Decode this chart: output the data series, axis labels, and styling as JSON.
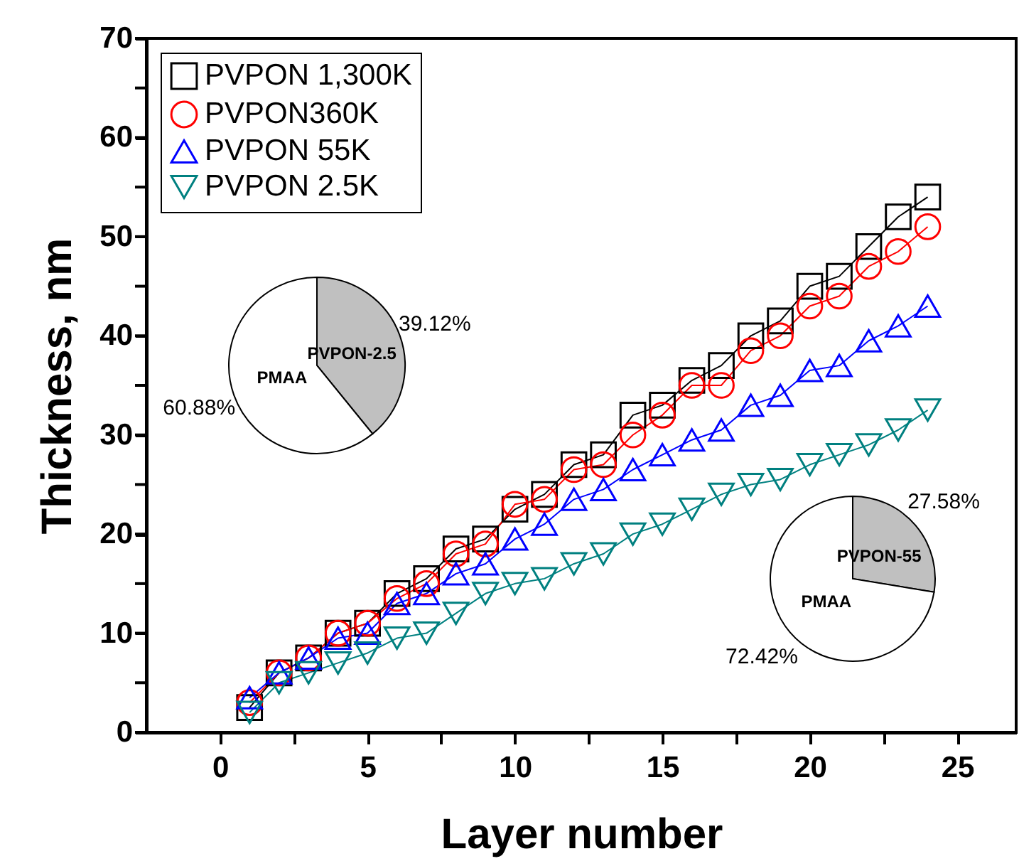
{
  "chart_data": [
    {
      "type": "line",
      "xlabel": "Layer number",
      "ylabel": "Thickness, nm",
      "x": [
        1,
        2,
        3,
        4,
        5,
        6,
        7,
        8,
        9,
        10,
        11,
        12,
        13,
        14,
        15,
        16,
        17,
        18,
        19,
        20,
        21,
        22,
        23,
        24
      ],
      "series": [
        {
          "name": "PVPON 1,300K",
          "color": "#000000",
          "marker": "square",
          "values": [
            2.5,
            6,
            7.5,
            10,
            11,
            14,
            15.5,
            18.5,
            19.5,
            22.5,
            24,
            27,
            28,
            32,
            33,
            35.5,
            37,
            40,
            41.5,
            45,
            46,
            49,
            52,
            54
          ]
        },
        {
          "name": "PVPON360K",
          "color": "#ff0000",
          "marker": "circle",
          "values": [
            3,
            6,
            7.5,
            10,
            11,
            13.5,
            15,
            18,
            19,
            23,
            23.5,
            26.5,
            27,
            30,
            32,
            35,
            35,
            38.5,
            40,
            43,
            44,
            47,
            48.5,
            51
          ]
        },
        {
          "name": "PVPON 55K",
          "color": "#0000ff",
          "marker": "triangle",
          "values": [
            3.5,
            6,
            7.5,
            9.5,
            10,
            13,
            14,
            16,
            17,
            19.5,
            21,
            23.5,
            24.5,
            26.5,
            28,
            29.5,
            30.5,
            33,
            34,
            36.5,
            37,
            39.5,
            41,
            43
          ]
        },
        {
          "name": "PVPON 2.5K",
          "color": "#008080",
          "marker": "triangle-down",
          "values": [
            2,
            5,
            6,
            7,
            8,
            9.5,
            10,
            12,
            14,
            15,
            15.5,
            17,
            18,
            20,
            21,
            22.5,
            24,
            25,
            25.5,
            27,
            28,
            29,
            30.5,
            32.5
          ]
        }
      ],
      "xlim": [
        -2.5,
        27
      ],
      "ylim": [
        0,
        70
      ],
      "xticks": [
        0,
        {
          "value": 2.5,
          "label": null
        },
        5,
        {
          "value": 7.5,
          "label": null
        },
        10,
        {
          "value": 12.5,
          "label": null
        },
        15,
        {
          "value": 17.5,
          "label": null
        },
        20,
        {
          "value": 22.5,
          "label": null
        },
        25
      ],
      "yticks": [
        0,
        {
          "value": 5,
          "label": null
        },
        10,
        {
          "value": 15,
          "label": null
        },
        20,
        {
          "value": 25,
          "label": null
        },
        30,
        {
          "value": 35,
          "label": null
        },
        40,
        {
          "value": 45,
          "label": null
        },
        50,
        {
          "value": 55,
          "label": null
        },
        60,
        {
          "value": 65,
          "label": null
        },
        70
      ],
      "grid": false,
      "legend": "top left",
      "line_style": "solid"
    },
    {
      "type": "pie",
      "categories": [
        "PVPON-2.5",
        "PMAA"
      ],
      "values": [
        39.12,
        60.88
      ],
      "colors": [
        "#c0c0c0",
        "#ffffff"
      ],
      "value_labels": [
        "39.12%",
        "60.88%"
      ]
    },
    {
      "type": "pie",
      "categories": [
        "PVPON-55",
        "PMAA"
      ],
      "values": [
        27.58,
        72.42
      ],
      "colors": [
        "#c0c0c0",
        "#ffffff"
      ],
      "value_labels": [
        "27.58%",
        "72.42%"
      ]
    }
  ]
}
